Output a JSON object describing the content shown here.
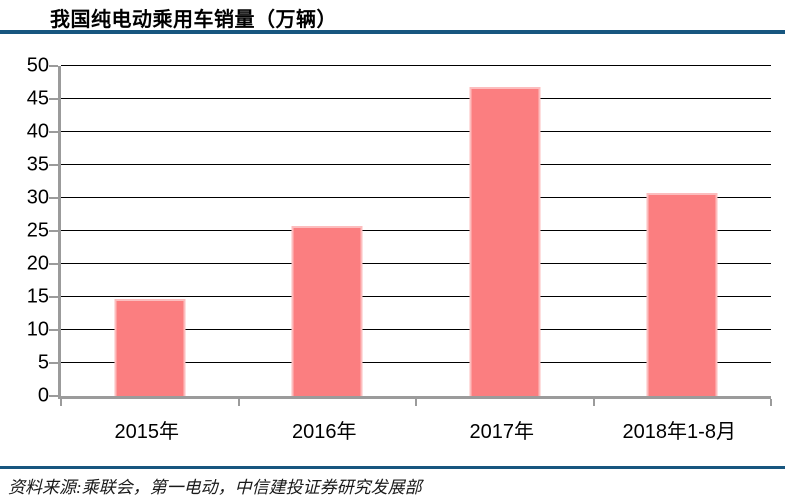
{
  "title": "我国纯电动乘用车销量（万辆）",
  "source_note": "资料来源:乘联会，第一电动，中信建投证券研究发展部",
  "colors": {
    "accent_rule": "#17567F",
    "bar_fill": "#FB7E80",
    "bar_border": "#FCBDBE",
    "axis": "#9B9B9B",
    "gridline": "#000000",
    "text": "#000000"
  },
  "chart_data": {
    "type": "bar",
    "title": "我国纯电动乘用车销量（万辆）",
    "categories": [
      "2015年",
      "2016年",
      "2017年",
      "2018年1-8月"
    ],
    "values": [
      14.7,
      25.7,
      46.8,
      30.8
    ],
    "xlabel": "",
    "ylabel": "",
    "ylim": [
      0,
      50
    ],
    "ytick_step": 5,
    "ytick_labels": [
      "0",
      "5",
      "10",
      "15",
      "20",
      "25",
      "30",
      "35",
      "40",
      "45",
      "50"
    ],
    "grid": true,
    "legend": false,
    "bar_width_fraction": 0.4
  }
}
